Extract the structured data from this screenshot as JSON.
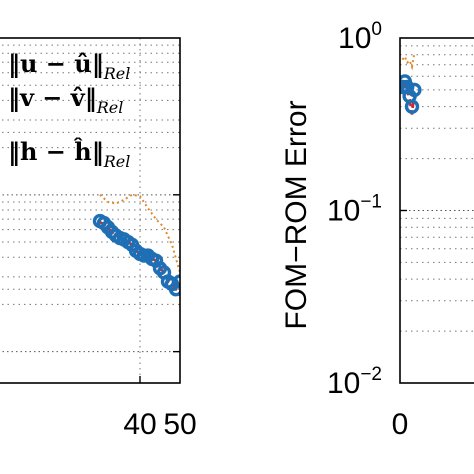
{
  "chart_data": [
    {
      "type": "line",
      "title": "",
      "xlabel": "",
      "ylabel": "",
      "xlim": [
        0,
        50
      ],
      "y_scale": "log",
      "grid": true,
      "x_tick_labels": [
        "40",
        "50"
      ],
      "legend": {
        "placement": "top-left",
        "entries": [
          "‖u − û‖",
          "‖v − v̂‖",
          "‖h − ĥ‖"
        ],
        "subscript": "Rel"
      },
      "series": [
        {
          "name": "‖u − û‖Rel",
          "style": "blue-circles",
          "color": "#1f6fb5",
          "x": [
            30,
            31,
            32,
            33,
            34,
            35,
            36,
            37,
            38,
            39,
            40,
            41,
            42,
            43,
            44,
            45,
            46,
            47,
            48,
            49,
            50
          ],
          "y": [
            0.068,
            0.066,
            0.062,
            0.058,
            0.055,
            0.053,
            0.052,
            0.05,
            0.048,
            0.044,
            0.042,
            0.041,
            0.041,
            0.039,
            0.038,
            0.034,
            0.032,
            0.028,
            0.027,
            0.025,
            0.028
          ]
        },
        {
          "name": "‖v − v̂‖Rel",
          "style": "red-dashed",
          "color": "#d62728",
          "x": [
            30,
            31,
            32,
            33,
            34,
            35,
            36,
            37,
            38,
            39,
            40,
            41,
            42,
            43,
            44,
            45,
            46,
            47,
            48,
            49,
            50
          ],
          "y": [
            0.067,
            0.065,
            0.061,
            0.058,
            0.055,
            0.053,
            0.052,
            0.05,
            0.048,
            0.044,
            0.042,
            0.041,
            0.04,
            0.039,
            0.038,
            0.034,
            0.032,
            0.028,
            0.027,
            0.025,
            0.027
          ]
        },
        {
          "name": "‖h − ĥ‖Rel",
          "style": "orange-dotted",
          "color": "#e08a2c",
          "x": [
            30,
            32,
            34,
            36,
            38,
            40,
            42,
            44,
            46,
            48,
            50
          ],
          "y": [
            0.1,
            0.09,
            0.088,
            0.093,
            0.1,
            0.098,
            0.082,
            0.07,
            0.062,
            0.048,
            0.032
          ]
        }
      ]
    },
    {
      "type": "line",
      "title": "",
      "xlabel": "",
      "ylabel": "FOM−ROM Error",
      "xlim": [
        0,
        50
      ],
      "ylim": [
        0.01,
        1
      ],
      "y_scale": "log",
      "grid": true,
      "x_tick_labels": [
        "0"
      ],
      "y_ticks": [
        {
          "value": 1,
          "base": "10",
          "exp": "0"
        },
        {
          "value": 0.1,
          "base": "10",
          "exp": "−1"
        },
        {
          "value": 0.01,
          "base": "10",
          "exp": "−2"
        }
      ],
      "series": [
        {
          "name": "‖u − û‖Rel",
          "style": "blue-circles",
          "color": "#1f6fb5",
          "x": [
            1,
            2,
            3,
            4,
            5,
            6
          ],
          "y": [
            0.52,
            0.56,
            0.52,
            0.46,
            0.4,
            0.5
          ]
        },
        {
          "name": "‖v − v̂‖Rel",
          "style": "red-dashed",
          "color": "#d62728",
          "x": [
            1,
            2,
            3,
            4,
            5,
            6
          ],
          "y": [
            0.5,
            0.54,
            0.5,
            0.44,
            0.36,
            0.48
          ]
        },
        {
          "name": "‖h − ĥ‖Rel",
          "style": "orange-dotted",
          "color": "#e08a2c",
          "x": [
            1,
            2,
            3,
            4,
            5,
            6
          ],
          "y": [
            0.75,
            0.78,
            0.72,
            0.74,
            0.68,
            0.82
          ]
        }
      ]
    }
  ]
}
